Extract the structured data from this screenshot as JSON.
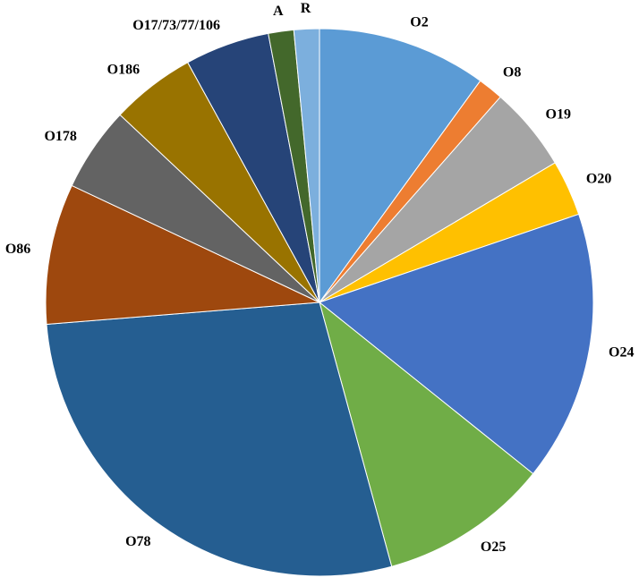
{
  "chart_data": {
    "type": "pie",
    "categories": [
      "O2",
      "O8",
      "O19",
      "O20",
      "O24",
      "O25",
      "O78",
      "O86",
      "O178",
      "O186",
      "O17/73/77/106",
      "A",
      "R"
    ],
    "values": [
      10,
      1.5,
      5,
      3.3,
      16,
      10,
      28,
      8.3,
      5,
      5,
      5,
      1.5,
      1.5
    ],
    "colors": [
      "#5b9bd5",
      "#ed7d31",
      "#a5a5a5",
      "#ffc000",
      "#4472c4",
      "#70ad47",
      "#255e91",
      "#9e480e",
      "#636363",
      "#997300",
      "#264478",
      "#43682b",
      "#7cafdd"
    ]
  }
}
